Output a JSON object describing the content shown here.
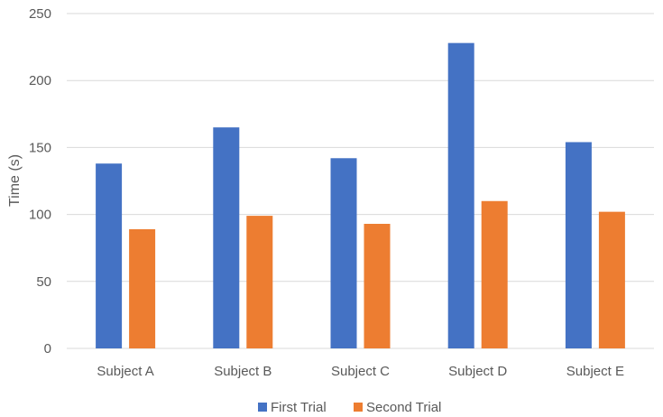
{
  "chart_data": {
    "type": "bar",
    "title": "",
    "xlabel": "",
    "ylabel": "Time (s)",
    "ylim": [
      0,
      250
    ],
    "yticks": [
      0,
      50,
      100,
      150,
      200,
      250
    ],
    "grid": true,
    "legend_position": "bottom",
    "categories": [
      "Subject A",
      "Subject B",
      "Subject C",
      "Subject D",
      "Subject E"
    ],
    "series": [
      {
        "name": "First Trial",
        "color": "#4472c4",
        "values": [
          138,
          165,
          142,
          228,
          154
        ]
      },
      {
        "name": "Second Trial",
        "color": "#ed7d31",
        "values": [
          89,
          99,
          93,
          110,
          102
        ]
      }
    ]
  }
}
